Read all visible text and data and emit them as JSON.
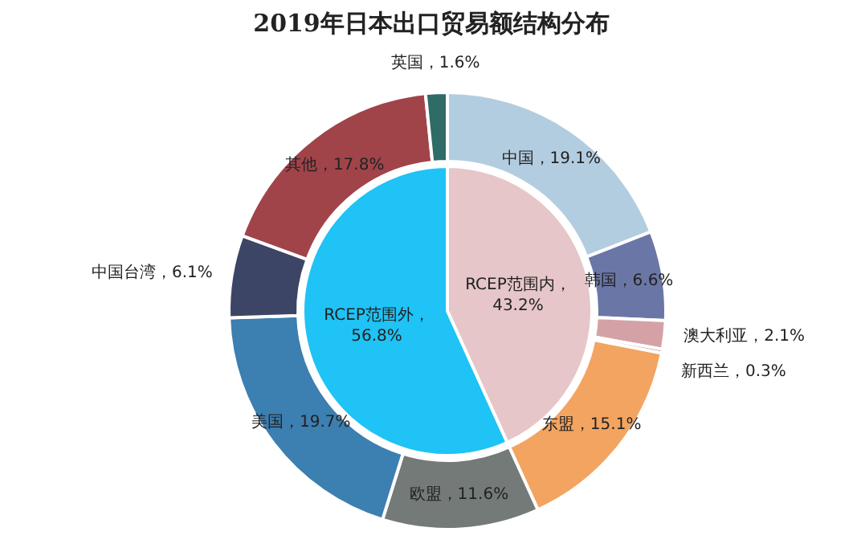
{
  "chart_data": {
    "type": "donut",
    "title": "2019年日本出口贸易额结构分布",
    "series": [
      {
        "values": [
          43.2,
          56.8
        ],
        "colors": [
          "#e6c6c8",
          "#1fc3f5"
        ],
        "value_labels": [
          "RCEP范围内，43.2%",
          "RCEP范围外，56.8%"
        ]
      },
      {
        "values": [
          19.1,
          6.6,
          2.1,
          0.3,
          15.1,
          11.6,
          19.7,
          6.1,
          17.8,
          1.6
        ],
        "colors": [
          "#b3cde0",
          "#6a77a6",
          "#d4a2a6",
          "#c9b0b0",
          "#f3a460",
          "#737a78",
          "#3c7fb1",
          "#3d4566",
          "#a0444a",
          "#2f6b67"
        ],
        "value_labels": [
          "中国，19.1%",
          "韩国，6.6%",
          "澳大利亚，2.1%",
          "新西兰，0.3%",
          "东盟，15.1%",
          "欧盟，11.6%",
          "美国，19.7%",
          "中国台湾，6.1%",
          "其他，17.8%",
          "英国，1.6%"
        ]
      }
    ]
  }
}
